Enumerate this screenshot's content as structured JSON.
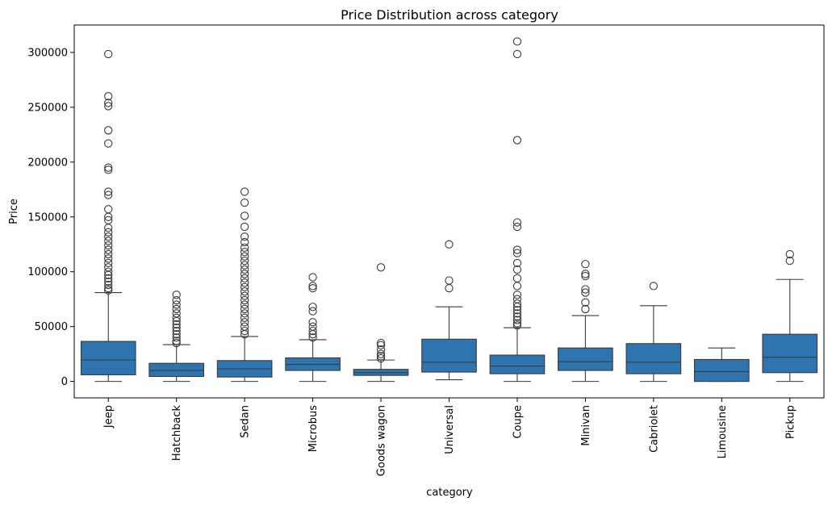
{
  "chart_data": {
    "type": "box",
    "title": "Price Distribution across category",
    "xlabel": "category",
    "ylabel": "Price",
    "ylim": [
      -15000,
      325000
    ],
    "yticks": [
      0,
      50000,
      100000,
      150000,
      200000,
      250000,
      300000
    ],
    "ytick_labels": [
      "0",
      "50000",
      "100000",
      "150000",
      "200000",
      "250000",
      "300000"
    ],
    "box_color": "#2e75b0",
    "categories": [
      "Jeep",
      "Hatchback",
      "Sedan",
      "Microbus",
      "Goods wagon",
      "Universal",
      "Coupe",
      "Minivan",
      "Cabriolet",
      "Limousine",
      "Pickup"
    ],
    "boxes": [
      {
        "category": "Jeep",
        "whisker_low": 0,
        "q1": 6000,
        "median": 19500,
        "q3": 36500,
        "whisker_high": 81000,
        "outliers": [
          298500,
          260000,
          254000,
          251000,
          229000,
          217000,
          195000,
          193000,
          173000,
          170000,
          157000,
          150000,
          147000,
          140000,
          136000,
          132000,
          128000,
          124000,
          120000,
          116000,
          112000,
          108000,
          104000,
          100000,
          97000,
          94000,
          91000,
          88000,
          85000,
          83000
        ]
      },
      {
        "category": "Hatchback",
        "whisker_low": 0,
        "q1": 4500,
        "median": 10000,
        "q3": 16500,
        "whisker_high": 33500,
        "outliers": [
          79000,
          74000,
          70000,
          66000,
          62000,
          58000,
          55000,
          52000,
          49000,
          46000,
          43000,
          40000,
          37000,
          35000
        ]
      },
      {
        "category": "Sedan",
        "whisker_low": 0,
        "q1": 4000,
        "median": 11500,
        "q3": 19000,
        "whisker_high": 41000,
        "outliers": [
          173000,
          163000,
          151000,
          141000,
          132000,
          127000,
          122000,
          118000,
          114000,
          110000,
          106000,
          102000,
          98000,
          94000,
          90000,
          86000,
          82000,
          78000,
          74000,
          70000,
          66000,
          62000,
          58000,
          54000,
          50000,
          46000,
          43000
        ]
      },
      {
        "category": "Microbus",
        "whisker_low": 0,
        "q1": 10000,
        "median": 15500,
        "q3": 21500,
        "whisker_high": 38000,
        "outliers": [
          95000,
          87000,
          85000,
          68000,
          64000,
          54000,
          50000,
          46000,
          43000,
          40000
        ]
      },
      {
        "category": "Goods wagon",
        "whisker_low": 0,
        "q1": 5500,
        "median": 8000,
        "q3": 11000,
        "whisker_high": 19500,
        "outliers": [
          104000,
          35000,
          33000,
          29000,
          25000,
          23000,
          21000
        ]
      },
      {
        "category": "Universal",
        "whisker_low": 1500,
        "q1": 8500,
        "median": 17500,
        "q3": 38500,
        "whisker_high": 68000,
        "outliers": [
          125000,
          92000,
          85000
        ]
      },
      {
        "category": "Coupe",
        "whisker_low": 0,
        "q1": 7000,
        "median": 14000,
        "q3": 24000,
        "whisker_high": 49000,
        "outliers": [
          310000,
          298500,
          220000,
          145000,
          141000,
          120000,
          117000,
          108000,
          102000,
          94000,
          87000,
          79000,
          75000,
          71000,
          68000,
          65000,
          62000,
          59000,
          56000,
          53000,
          51000
        ]
      },
      {
        "category": "Minivan",
        "whisker_low": 0,
        "q1": 10000,
        "median": 18000,
        "q3": 30500,
        "whisker_high": 60000,
        "outliers": [
          107000,
          98000,
          96000,
          84000,
          81000,
          72000,
          66000
        ]
      },
      {
        "category": "Cabriolet",
        "whisker_low": 0,
        "q1": 7000,
        "median": 17500,
        "q3": 34500,
        "whisker_high": 69000,
        "outliers": [
          87000
        ]
      },
      {
        "category": "Limousine",
        "whisker_low": 0,
        "q1": 0,
        "median": 9000,
        "q3": 20000,
        "whisker_high": 30500,
        "outliers": []
      },
      {
        "category": "Pickup",
        "whisker_low": 0,
        "q1": 8000,
        "median": 22000,
        "q3": 43000,
        "whisker_high": 93000,
        "outliers": [
          116000,
          110000
        ]
      }
    ]
  }
}
